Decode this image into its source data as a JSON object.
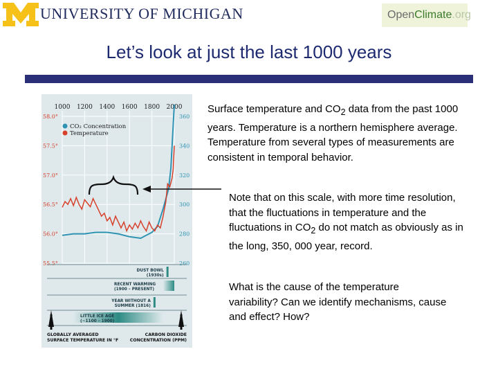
{
  "header": {
    "logo_text": "UNIVERSITY OF MICHIGAN",
    "openclimate": {
      "open": "Open",
      "climate": "Climate",
      "org": ".org"
    }
  },
  "slide": {
    "title": "Let’s look at just the last 1000 years"
  },
  "text": {
    "p1_a": "Surface temperature and CO",
    "p1_sub": "2",
    "p1_b": " data from the past 1000 years.  Temperature is a northern hemisphere average.  Temperature from several types of measurements are consistent in temporal behavior.",
    "p2_a": "Note that on this scale, with more time resolution, that the fluctuations in temperature and the fluctuations in CO",
    "p2_sub": "2",
    "p2_b": " do not match as obviously as in the long, 350, 000 year, record.",
    "p3": "What is the cause of the temperature variability?  Can we identify mechanisms, cause and effect?  How?"
  },
  "colors": {
    "title": "#1d2a70",
    "bar": "#2a2f78",
    "co2": "#2f93b3",
    "temp": "#d7402b",
    "teal": "#2e8b84"
  },
  "chart_data": {
    "type": "line",
    "x_ticks": [
      "1000",
      "1200",
      "1400",
      "1600",
      "1800",
      "2000"
    ],
    "y_left_ticks": [
      "58.0°",
      "57.5°",
      "57.0°",
      "56.5°",
      "56.0°",
      "55.5°"
    ],
    "y_right_ticks": [
      "360",
      "340",
      "320",
      "300",
      "280",
      "260"
    ],
    "legend": [
      "CO₂ Concentration",
      "Temperature"
    ],
    "xlabel_left": [
      "GLOBALLY AVERAGED",
      "SURFACE TEMPERATURE IN °F"
    ],
    "xlabel_right": [
      "CARBON DIOXIDE",
      "CONCENTRATION (PPM)"
    ],
    "annotations": [
      {
        "lines": [
          "DUST BOWL",
          "(1930s)"
        ],
        "start": 1930,
        "end": 1940
      },
      {
        "lines": [
          "RECENT WARMING",
          "(1900 – PRESENT)"
        ],
        "start": 1900,
        "end": 2000
      },
      {
        "lines": [
          "YEAR WITHOUT A",
          "SUMMER (1816)"
        ],
        "start": 1814,
        "end": 1818
      },
      {
        "lines": [
          "LITTLE ICE AGE",
          "(~1100 – 1900)"
        ],
        "start": 1100,
        "end": 1900
      }
    ],
    "x_range": [
      1000,
      2000
    ],
    "temp_range_F": [
      55.5,
      58.0
    ],
    "co2_range_ppm": [
      260,
      360
    ],
    "series": [
      {
        "name": "Temperature",
        "x": [
          1000,
          1025,
          1050,
          1075,
          1100,
          1125,
          1150,
          1175,
          1200,
          1225,
          1250,
          1275,
          1300,
          1325,
          1350,
          1375,
          1400,
          1425,
          1450,
          1475,
          1500,
          1525,
          1550,
          1575,
          1600,
          1625,
          1650,
          1675,
          1700,
          1725,
          1750,
          1775,
          1800,
          1825,
          1850,
          1875,
          1900,
          1925,
          1940,
          1960,
          1980,
          1990,
          2000
        ],
        "values": [
          56.45,
          56.55,
          56.5,
          56.6,
          56.48,
          56.62,
          56.5,
          56.42,
          56.58,
          56.52,
          56.46,
          56.6,
          56.5,
          56.4,
          56.3,
          56.35,
          56.22,
          56.28,
          56.15,
          56.3,
          56.2,
          56.1,
          56.2,
          56.05,
          56.15,
          56.08,
          56.18,
          56.1,
          56.22,
          56.12,
          56.05,
          56.2,
          56.1,
          56.05,
          56.15,
          56.1,
          56.3,
          56.55,
          56.85,
          56.8,
          56.95,
          57.1,
          57.5
        ]
      },
      {
        "name": "CO₂ Concentration",
        "x": [
          1000,
          1100,
          1200,
          1300,
          1400,
          1500,
          1600,
          1700,
          1800,
          1850,
          1900,
          1950,
          1970,
          1990,
          2000
        ],
        "values": [
          279,
          280,
          280,
          281,
          281,
          280,
          278,
          277,
          281,
          285,
          297,
          311,
          325,
          354,
          368
        ]
      }
    ]
  }
}
